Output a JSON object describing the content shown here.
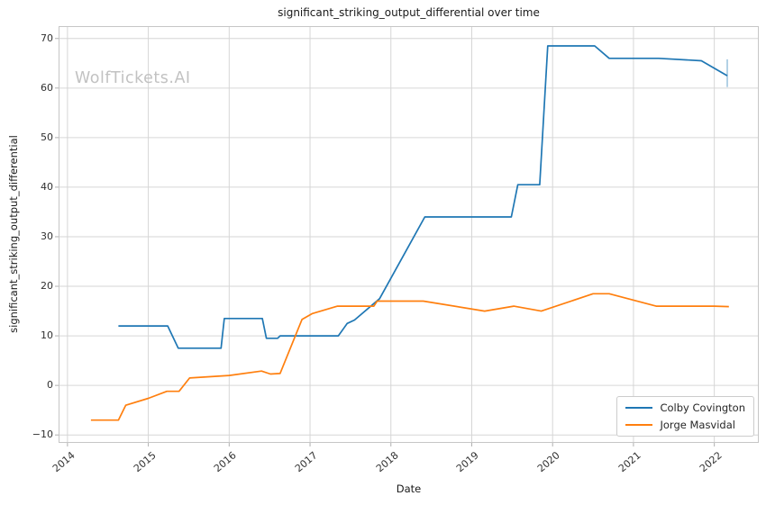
{
  "watermark": "WolfTickets.AI",
  "colors": {
    "colby_line": "#1f77b4",
    "masvidal_line": "#ff7f0e",
    "grid": "#d6d6d6",
    "spine": "#c6c6c6",
    "tick": "#b0b0b0",
    "text": "#262626",
    "watermark": "#c2c2c2",
    "end_marker": "rgba(31,119,180,0.45)"
  },
  "chart_data": {
    "type": "line",
    "title": "significant_striking_output_differential over time",
    "xlabel": "Date",
    "ylabel": "significant_striking_output_differential",
    "grid": true,
    "xlim": [
      2013.89,
      2022.55
    ],
    "ylim": [
      -11.6,
      72.5
    ],
    "xticks": {
      "values": [
        2014,
        2015,
        2016,
        2017,
        2018,
        2019,
        2020,
        2021,
        2022
      ],
      "labels": [
        "2014",
        "2015",
        "2016",
        "2017",
        "2018",
        "2019",
        "2020",
        "2021",
        "2022"
      ]
    },
    "yticks": {
      "values": [
        -10,
        0,
        10,
        20,
        30,
        40,
        50,
        60,
        70
      ],
      "labels": [
        "−10",
        "0",
        "10",
        "20",
        "30",
        "40",
        "50",
        "60",
        "70"
      ]
    },
    "legend": {
      "position": "lower right",
      "entries": [
        {
          "label": "Colby Covington",
          "color": "#1f77b4"
        },
        {
          "label": "Jorge Masvidal",
          "color": "#ff7f0e"
        }
      ]
    },
    "series": [
      {
        "name": "Colby Covington",
        "color": "#1f77b4",
        "points": [
          [
            2014.63,
            12
          ],
          [
            2015.24,
            12
          ],
          [
            2015.37,
            7.5
          ],
          [
            2015.9,
            7.5
          ],
          [
            2015.94,
            13.5
          ],
          [
            2016.41,
            13.5
          ],
          [
            2016.46,
            9.5
          ],
          [
            2016.6,
            9.5
          ],
          [
            2016.63,
            10
          ],
          [
            2017.35,
            10
          ],
          [
            2017.46,
            12.5
          ],
          [
            2017.55,
            13.2
          ],
          [
            2017.86,
            17.5
          ],
          [
            2018.42,
            34
          ],
          [
            2019.49,
            34
          ],
          [
            2019.57,
            40.5
          ],
          [
            2019.84,
            40.5
          ],
          [
            2019.94,
            68.5
          ],
          [
            2020.52,
            68.5
          ],
          [
            2020.7,
            66
          ],
          [
            2021.31,
            66
          ],
          [
            2021.84,
            65.5
          ],
          [
            2022.16,
            62.5
          ]
        ]
      },
      {
        "name": "Jorge Masvidal",
        "color": "#ff7f0e",
        "points": [
          [
            2014.29,
            -7
          ],
          [
            2014.63,
            -7
          ],
          [
            2014.72,
            -4
          ],
          [
            2015.0,
            -2.6
          ],
          [
            2015.23,
            -1.2
          ],
          [
            2015.38,
            -1.2
          ],
          [
            2015.51,
            1.5
          ],
          [
            2016.0,
            2
          ],
          [
            2016.4,
            2.9
          ],
          [
            2016.51,
            2.3
          ],
          [
            2016.63,
            2.4
          ],
          [
            2016.9,
            13.3
          ],
          [
            2017.03,
            14.5
          ],
          [
            2017.34,
            16
          ],
          [
            2017.79,
            16
          ],
          [
            2017.83,
            17
          ],
          [
            2018.4,
            17
          ],
          [
            2019.16,
            15
          ],
          [
            2019.52,
            16
          ],
          [
            2019.86,
            15
          ],
          [
            2020.5,
            18.5
          ],
          [
            2020.7,
            18.5
          ],
          [
            2021.28,
            16
          ],
          [
            2022.0,
            16
          ],
          [
            2022.18,
            15.9
          ]
        ]
      }
    ],
    "end_marker": {
      "series": "Colby Covington",
      "x": 2022.16,
      "value_top": 65.8,
      "value_bottom": 60.2
    }
  }
}
